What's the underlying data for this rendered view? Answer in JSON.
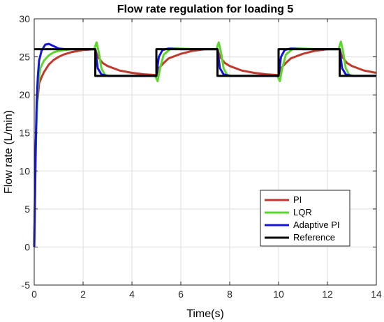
{
  "chart_data": {
    "type": "line",
    "title": "Flow rate regulation for loading 5",
    "xlabel": "Time(s)",
    "ylabel": "Flow rate (L/min)",
    "xlim": [
      0,
      14
    ],
    "ylim": [
      -5,
      30
    ],
    "xticks": [
      "0",
      "2",
      "4",
      "6",
      "8",
      "10",
      "12",
      "14"
    ],
    "yticks": [
      "-5",
      "0",
      "5",
      "10",
      "15",
      "20",
      "25",
      "30"
    ],
    "grid": true,
    "legend_position": "bottom-right",
    "series": [
      {
        "name": "PI",
        "color": "#c0392b",
        "x": [
          0,
          0.05,
          0.1,
          0.2,
          0.3,
          0.4,
          0.5,
          0.6,
          0.8,
          1.0,
          1.2,
          1.5,
          2.0,
          2.5,
          2.6,
          2.8,
          3.0,
          3.5,
          4.0,
          4.5,
          5.0,
          5.1,
          5.3,
          5.5,
          6.0,
          6.5,
          7.0,
          7.5,
          7.6,
          7.8,
          8.0,
          8.5,
          9.0,
          9.5,
          10.0,
          10.1,
          10.3,
          10.5,
          11.0,
          11.5,
          12.0,
          12.5,
          12.6,
          12.8,
          13.0,
          13.5,
          14.0
        ],
        "y": [
          0,
          12,
          18,
          21.5,
          22.3,
          23.0,
          23.5,
          24.0,
          24.6,
          25.0,
          25.3,
          25.6,
          25.9,
          26.0,
          25.0,
          24.2,
          23.8,
          23.2,
          22.9,
          22.7,
          22.6,
          23.5,
          24.2,
          24.8,
          25.4,
          25.8,
          26.0,
          26.0,
          25.0,
          24.2,
          23.8,
          23.2,
          22.9,
          22.7,
          22.6,
          23.5,
          24.2,
          24.8,
          25.4,
          25.8,
          26.0,
          26.0,
          25.0,
          24.2,
          23.8,
          23.2,
          22.9
        ]
      },
      {
        "name": "LQR",
        "color": "#5dd62c",
        "x": [
          0,
          0.04,
          0.08,
          0.15,
          0.25,
          0.4,
          0.6,
          0.8,
          1.0,
          1.5,
          2.0,
          2.45,
          2.55,
          2.65,
          2.75,
          2.9,
          3.1,
          3.5,
          4.0,
          4.5,
          4.95,
          5.05,
          5.15,
          5.3,
          5.6,
          6.0,
          6.5,
          7.0,
          7.45,
          7.55,
          7.65,
          7.75,
          7.9,
          8.1,
          8.5,
          9.0,
          9.5,
          9.95,
          10.05,
          10.15,
          10.3,
          10.6,
          11.0,
          11.5,
          12.0,
          12.45,
          12.55,
          12.65,
          12.75,
          12.9,
          13.1,
          13.5,
          14.0
        ],
        "y": [
          0,
          8,
          15,
          21,
          23.5,
          24.5,
          25.2,
          25.6,
          25.8,
          26.0,
          26.0,
          26.0,
          26.9,
          25.5,
          23.5,
          22.6,
          22.5,
          22.5,
          22.5,
          22.5,
          22.5,
          21.8,
          23.5,
          25.3,
          26.1,
          26.1,
          26.0,
          26.0,
          26.0,
          26.9,
          25.5,
          23.5,
          22.6,
          22.5,
          22.5,
          22.5,
          22.5,
          22.5,
          21.8,
          23.5,
          25.3,
          26.1,
          26.1,
          26.0,
          26.0,
          26.0,
          27.0,
          25.5,
          23.5,
          22.6,
          22.5,
          22.5,
          22.5
        ]
      },
      {
        "name": "Adaptive PI",
        "color": "#1414d9",
        "x": [
          0,
          0.03,
          0.06,
          0.1,
          0.15,
          0.2,
          0.3,
          0.45,
          0.6,
          0.8,
          1.0,
          1.3,
          1.6,
          2.0,
          2.5,
          2.6,
          2.75,
          3.0,
          3.5,
          4.0,
          4.5,
          5.0,
          5.1,
          5.25,
          5.5,
          6.0,
          6.5,
          7.0,
          7.5,
          7.6,
          7.75,
          8.0,
          8.5,
          9.0,
          9.5,
          10.0,
          10.1,
          10.25,
          10.5,
          11.0,
          11.5,
          12.0,
          12.5,
          12.6,
          12.75,
          13.0,
          13.5,
          14.0
        ],
        "y": [
          0,
          6,
          13,
          19,
          22.5,
          24.5,
          25.8,
          26.6,
          26.7,
          26.4,
          26.1,
          26.0,
          26.0,
          26.0,
          26.0,
          23.5,
          22.7,
          22.5,
          22.5,
          22.5,
          22.5,
          22.5,
          25.0,
          25.9,
          26.1,
          26.0,
          26.0,
          26.0,
          26.0,
          23.5,
          22.7,
          22.5,
          22.5,
          22.5,
          22.5,
          22.5,
          25.0,
          25.9,
          26.1,
          26.0,
          26.0,
          26.0,
          26.0,
          23.5,
          22.7,
          22.5,
          22.5,
          22.5
        ]
      },
      {
        "name": "Reference",
        "color": "#000000",
        "x": [
          0,
          2.5,
          2.5,
          5.0,
          5.0,
          7.5,
          7.5,
          10.0,
          10.0,
          12.5,
          12.5,
          14.0
        ],
        "y": [
          26,
          26,
          22.5,
          22.5,
          26,
          26,
          22.5,
          22.5,
          26,
          26,
          22.5,
          22.5
        ]
      }
    ]
  }
}
